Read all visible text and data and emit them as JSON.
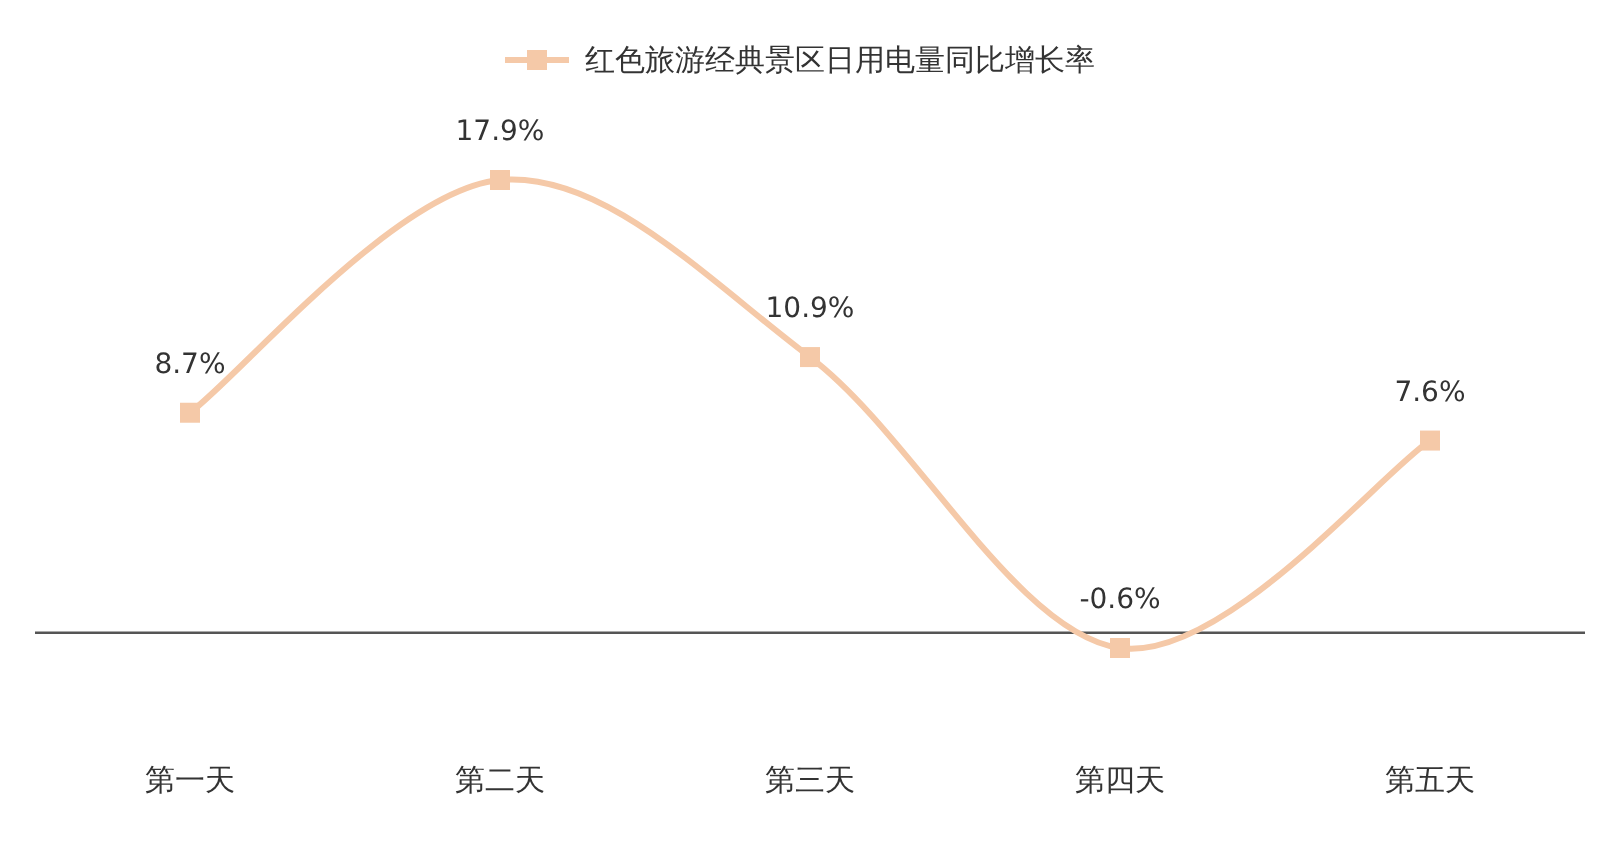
{
  "chart_data": {
    "type": "line",
    "categories": [
      "第一天",
      "第二天",
      "第三天",
      "第四天",
      "第五天"
    ],
    "series": [
      {
        "name": "红色旅游经典景区日用电量同比增长率",
        "color": "#f5c9a8",
        "values": [
          8.7,
          17.9,
          10.9,
          -0.6,
          7.6
        ],
        "value_labels": [
          "8.7%",
          "17.9%",
          "10.9%",
          "-0.6%",
          "7.6%"
        ]
      }
    ],
    "legend": "top",
    "marker": "square",
    "line_style": "solid"
  }
}
